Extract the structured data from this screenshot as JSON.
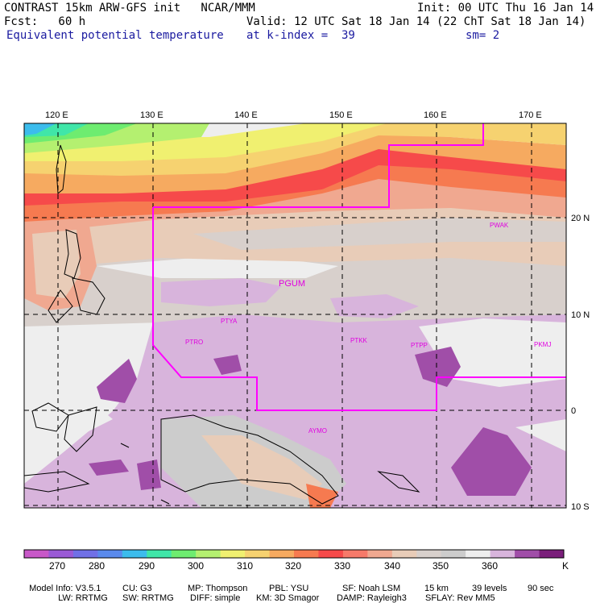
{
  "header": {
    "model_title": "CONTRAST 15km ARW-GFS init   NCAR/MMM",
    "init": "Init: 00 UTC Thu 16 Jan 14",
    "forecast": "Fcst:   60 h",
    "valid": "Valid: 12 UTC Sat 18 Jan 14 (22 ChT Sat 18 Jan 14)",
    "field": "Equivalent potential temperature",
    "level": "at k-index =  39",
    "smoothing": "sm= 2"
  },
  "map": {
    "lon_labels": [
      "120 E",
      "130 E",
      "140 E",
      "150 E",
      "160 E",
      "170 E"
    ],
    "lat_labels": [
      "20 N",
      "10 N",
      "0",
      "10 S"
    ],
    "stations": [
      "PWAK",
      "PGUM",
      "PTYA",
      "PTRO",
      "PTKK",
      "PTPP",
      "PKMJ",
      "AYMO"
    ],
    "colors": {
      "station": "#e000e0",
      "boundary": "#ff00ff",
      "grid": "#000000"
    }
  },
  "colorbar": {
    "colors": [
      "#c858c8",
      "#9a5ad6",
      "#7070e6",
      "#5a8aec",
      "#3cbcec",
      "#40e6a8",
      "#6eec70",
      "#b4f070",
      "#f0f070",
      "#f6d270",
      "#f6aa60",
      "#f67a50",
      "#f64a4a",
      "#f67a6a",
      "#f0a890",
      "#e8ccb8",
      "#d8d0cc",
      "#cccccc",
      "#eeeeee",
      "#d8b4dc",
      "#a04ea8",
      "#7a1e7a"
    ],
    "labels": [
      "270",
      "280",
      "290",
      "300",
      "310",
      "320",
      "330",
      "340",
      "350",
      "360",
      "K"
    ]
  },
  "model_info": {
    "line1": [
      "Model Info: V3.5.1",
      "CU: G3",
      "MP: Thompson",
      "PBL: YSU",
      "SF: Noah LSM",
      "15 km",
      "39 levels",
      "90 sec"
    ],
    "line2": [
      "LW: RRTMG",
      "SW: RRTMG",
      "DIFF: simple",
      "KM: 3D Smagor",
      "DAMP: Rayleigh3",
      "SFLAY: Rev MM5"
    ]
  }
}
